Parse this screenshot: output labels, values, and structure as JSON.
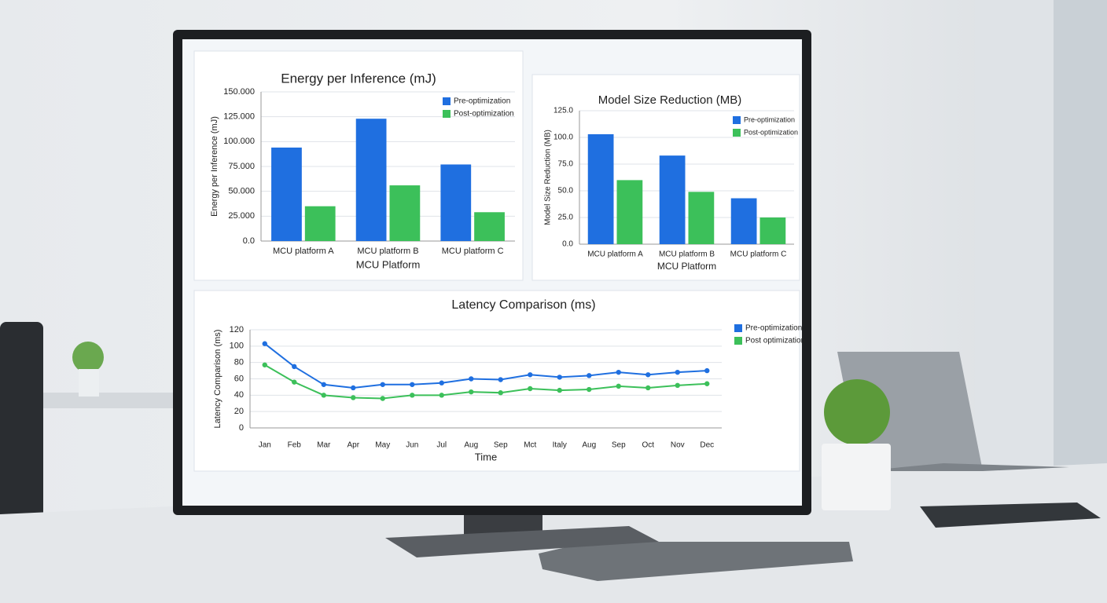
{
  "chart_data": [
    {
      "type": "bar",
      "title": "Energy per Inference (mJ)",
      "x_label": "MCU Platform",
      "y_label": "Energy per Inference (mJ)",
      "categories": [
        "MCU platform A",
        "MCU platform B",
        "MCU platform C"
      ],
      "series": [
        {
          "name": "Pre-optimization",
          "color": "#1f6fe0",
          "values": [
            94,
            123,
            77
          ]
        },
        {
          "name": "Post-optimization",
          "color": "#3cc05a",
          "values": [
            35,
            56,
            29
          ]
        }
      ],
      "ylim": [
        0,
        150
      ],
      "yticks": [
        {
          "value": 0,
          "label": "0.0"
        },
        {
          "value": 25,
          "label": "25.000"
        },
        {
          "value": 50,
          "label": "50.000"
        },
        {
          "value": 75,
          "label": "75.000"
        },
        {
          "value": 100,
          "label": "100.000"
        },
        {
          "value": 125,
          "label": "125.000"
        },
        {
          "value": 150,
          "label": "150.000"
        }
      ],
      "grid": true,
      "legend": "top-right"
    },
    {
      "type": "bar",
      "title": "Model Size Reduction (MB)",
      "x_label": "MCU Platform",
      "y_label": "Model Size Reduction (MB)",
      "categories": [
        "MCU platform A",
        "MCU platform B",
        "MCU platform C"
      ],
      "series": [
        {
          "name": "Pre-optimization",
          "color": "#1f6fe0",
          "values": [
            103,
            83,
            43
          ]
        },
        {
          "name": "Post-optimization",
          "color": "#3cc05a",
          "values": [
            60,
            49,
            25
          ]
        }
      ],
      "ylim": [
        0,
        125
      ],
      "yticks": [
        {
          "value": 0,
          "label": "0.0"
        },
        {
          "value": 25,
          "label": "25.0"
        },
        {
          "value": 50,
          "label": "50.0"
        },
        {
          "value": 75,
          "label": "75.0"
        },
        {
          "value": 100,
          "label": "100.0"
        },
        {
          "value": 125,
          "label": "125.0"
        }
      ],
      "grid": true,
      "legend": "top-right"
    },
    {
      "type": "line",
      "title": "Latency Comparison (ms)",
      "x_label": "Time",
      "y_label": "Latency Comparison (ms)",
      "categories": [
        "Jan",
        "Feb",
        "Mar",
        "Apr",
        "May",
        "Jun",
        "Jul",
        "Aug",
        "Sep",
        "Mct",
        "Italy",
        "Aug",
        "Sep",
        "Oct",
        "Nov",
        "Dec"
      ],
      "series": [
        {
          "name": "Pre-optimization",
          "color": "#1f6fe0",
          "values": [
            103,
            75,
            53,
            49,
            53,
            53,
            55,
            60,
            59,
            65,
            62,
            64,
            68,
            65,
            68,
            70
          ]
        },
        {
          "name": "Post optimization",
          "color": "#3cc05a",
          "values": [
            77,
            56,
            40,
            37,
            36,
            40,
            40,
            44,
            43,
            48,
            46,
            47,
            51,
            49,
            52,
            54
          ]
        }
      ],
      "ylim": [
        0,
        120
      ],
      "yticks": [
        0,
        20,
        40,
        60,
        80,
        100,
        120
      ],
      "grid": true,
      "legend": "right"
    }
  ]
}
